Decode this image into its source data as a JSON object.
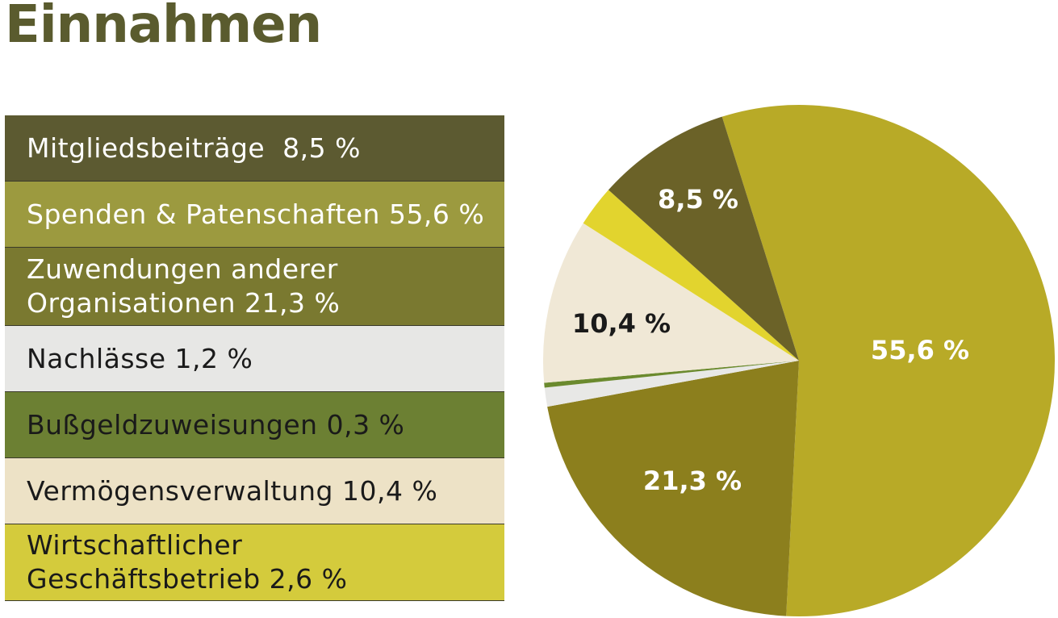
{
  "title": "Einnahmen",
  "chart_data": {
    "type": "pie",
    "slices": [
      {
        "legend": "Mitgliedsbeiträge  8,5 %",
        "label": "8,5 %",
        "value": 8.5,
        "color": "#5c5a31",
        "pie_color": "#6b6228",
        "legend_text_color": "#ffffff",
        "label_color": "#ffffff"
      },
      {
        "legend": "Spenden & Patenschaften 55,6 %",
        "label": "55,6 %",
        "value": 55.6,
        "color": "#9c9a3f",
        "pie_color": "#b8aa27",
        "legend_text_color": "#ffffff",
        "label_color": "#ffffff"
      },
      {
        "legend": "Zuwendungen anderer\nOrganisationen 21,3 %",
        "label": "21,3 %",
        "value": 21.3,
        "color": "#7a7930",
        "pie_color": "#8c7f1d",
        "legend_text_color": "#ffffff",
        "label_color": "#ffffff"
      },
      {
        "legend": "Nachlässe 1,2 %",
        "label": "",
        "value": 1.2,
        "color": "#e7e7e5",
        "pie_color": "#e8e8e6",
        "legend_text_color": "#1a1a1a",
        "label_color": "#1a1a1a"
      },
      {
        "legend": "Bußgeldzuweisungen 0,3 %",
        "label": "",
        "value": 0.3,
        "color": "#6c8033",
        "pie_color": "#6b8a2e",
        "legend_text_color": "#1a1a1a",
        "label_color": "#1a1a1a"
      },
      {
        "legend": "Vermögensverwaltung 10,4 %",
        "label": "10,4 %",
        "value": 10.4,
        "color": "#ede2c6",
        "pie_color": "#f0e8d6",
        "legend_text_color": "#1a1a1a",
        "label_color": "#1a1a1a"
      },
      {
        "legend": "Wirtschaftlicher\nGeschäftsbetrieb 2,6 %",
        "label": "",
        "value": 2.6,
        "color": "#d4cb3c",
        "pie_color": "#e2d42e",
        "legend_text_color": "#1a1a1a",
        "label_color": "#1a1a1a"
      }
    ],
    "pie_order": [
      1,
      2,
      3,
      4,
      5,
      6,
      0
    ],
    "start_angle_deg": -17.5,
    "direction": "clockwise"
  }
}
